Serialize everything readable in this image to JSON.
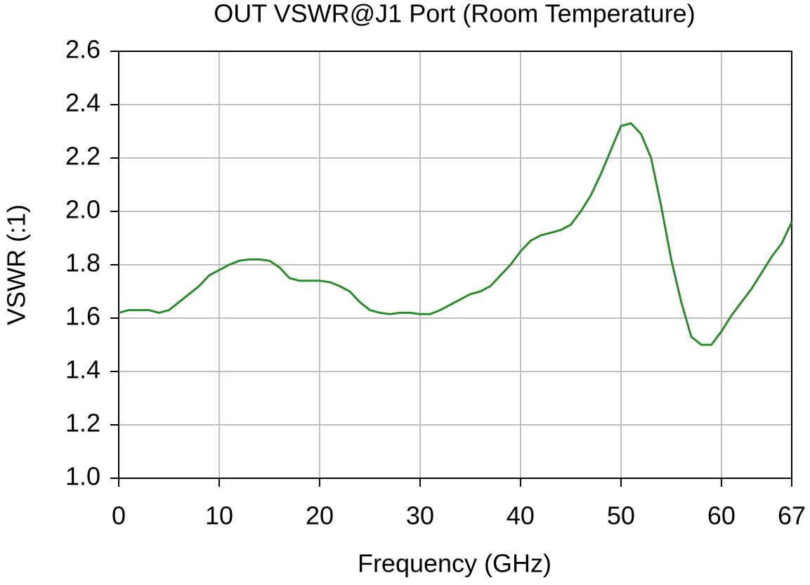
{
  "chart_data": {
    "type": "line",
    "title": "OUT VSWR@J1 Port (Room Temperature)",
    "x_label": "Frequency (GHz)",
    "y_label": "VSWR (:1)",
    "x": [
      0,
      1,
      2,
      3,
      4,
      5,
      6,
      7,
      8,
      9,
      10,
      11,
      12,
      13,
      14,
      15,
      16,
      17,
      18,
      19,
      20,
      21,
      22,
      23,
      24,
      25,
      26,
      27,
      28,
      29,
      30,
      31,
      32,
      33,
      34,
      35,
      36,
      37,
      38,
      39,
      40,
      41,
      42,
      43,
      44,
      45,
      46,
      47,
      48,
      49,
      50,
      51,
      52,
      53,
      54,
      55,
      56,
      57,
      58,
      59,
      60,
      61,
      62,
      63,
      64,
      65,
      66,
      67
    ],
    "series": [
      {
        "name": "VSWR",
        "color": "#2b8a2b",
        "values": [
          1.62,
          1.63,
          1.63,
          1.63,
          1.62,
          1.63,
          1.66,
          1.69,
          1.72,
          1.76,
          1.78,
          1.8,
          1.815,
          1.82,
          1.82,
          1.815,
          1.79,
          1.75,
          1.74,
          1.74,
          1.74,
          1.735,
          1.72,
          1.7,
          1.66,
          1.63,
          1.62,
          1.615,
          1.62,
          1.62,
          1.615,
          1.615,
          1.63,
          1.65,
          1.67,
          1.69,
          1.7,
          1.72,
          1.76,
          1.8,
          1.85,
          1.89,
          1.91,
          1.92,
          1.93,
          1.95,
          2.0,
          2.06,
          2.14,
          2.23,
          2.32,
          2.33,
          2.29,
          2.2,
          2.02,
          1.82,
          1.66,
          1.53,
          1.5,
          1.5,
          1.55,
          1.61,
          1.66,
          1.71,
          1.77,
          1.83,
          1.88,
          1.96
        ]
      }
    ],
    "xlim": [
      0,
      67
    ],
    "xticks": [
      0,
      10,
      20,
      30,
      40,
      50,
      60,
      67
    ],
    "ylim": [
      1,
      2.6
    ],
    "yticks": [
      {
        "value": 1,
        "label": "1.0"
      },
      1.2,
      1.4,
      1.6,
      1.8,
      {
        "value": 2,
        "label": "2.0"
      },
      2.2,
      2.4,
      2.6
    ],
    "grid": true
  }
}
